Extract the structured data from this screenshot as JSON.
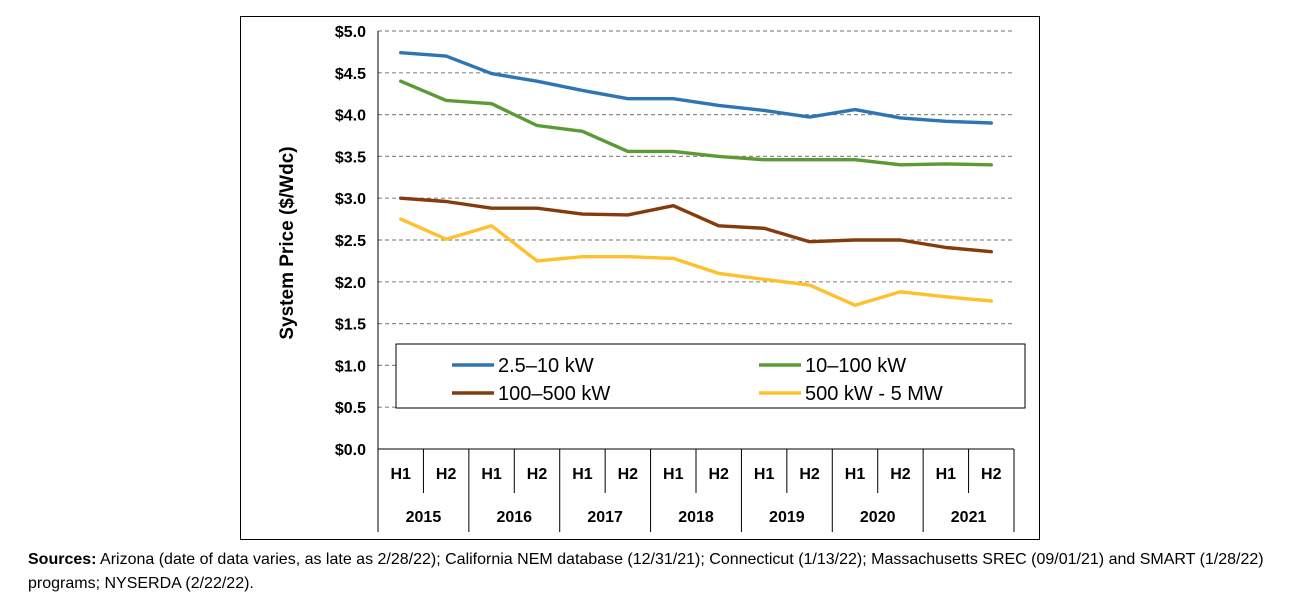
{
  "chart_data": {
    "type": "line",
    "ylabel": "System Price ($/Wdc)",
    "ylim": [
      0,
      5
    ],
    "y_ticks": [
      "$0.0",
      "$0.5",
      "$1.0",
      "$1.5",
      "$2.0",
      "$2.5",
      "$3.0",
      "$3.5",
      "$4.0",
      "$4.5",
      "$5.0"
    ],
    "grid": true,
    "legend_placement": "lower-middle",
    "categories": [
      "2015 H1",
      "2015 H2",
      "2016 H1",
      "2016 H2",
      "2017 H1",
      "2017 H2",
      "2018 H1",
      "2018 H2",
      "2019 H1",
      "2019 H2",
      "2020 H1",
      "2020 H2",
      "2021 H1",
      "2021 H2"
    ],
    "half_labels": [
      "H1",
      "H2",
      "H1",
      "H2",
      "H1",
      "H2",
      "H1",
      "H2",
      "H1",
      "H2",
      "H1",
      "H2",
      "H1",
      "H2"
    ],
    "years": [
      "2015",
      "2016",
      "2017",
      "2018",
      "2019",
      "2020",
      "2021"
    ],
    "series": [
      {
        "name": "2.5–10 kW",
        "color": "#2e75b6",
        "values": [
          4.74,
          4.7,
          4.49,
          4.4,
          4.29,
          4.19,
          4.19,
          4.11,
          4.05,
          3.97,
          4.06,
          3.96,
          3.92,
          3.9
        ]
      },
      {
        "name": "10–100 kW",
        "color": "#5b9b35",
        "values": [
          4.4,
          4.17,
          4.13,
          3.87,
          3.8,
          3.56,
          3.56,
          3.5,
          3.46,
          3.46,
          3.46,
          3.4,
          3.41,
          3.4
        ]
      },
      {
        "name": "100–500 kW",
        "color": "#843c0c",
        "values": [
          3.0,
          2.96,
          2.88,
          2.88,
          2.81,
          2.8,
          2.91,
          2.67,
          2.64,
          2.48,
          2.5,
          2.5,
          2.41,
          2.36
        ]
      },
      {
        "name": "500 kW - 5 MW",
        "color": "#ffc02e",
        "values": [
          2.75,
          2.51,
          2.67,
          2.25,
          2.3,
          2.3,
          2.28,
          2.1,
          2.03,
          1.96,
          1.72,
          1.88,
          1.82,
          1.77
        ]
      }
    ]
  },
  "sources": {
    "label": "Sources:",
    "text": " Arizona (date of data varies, as late as 2/28/22); California NEM database (12/31/21); Connecticut (1/13/22); Massachusetts SREC (09/01/21) and SMART (1/28/22) programs; NYSERDA (2/22/22)."
  }
}
